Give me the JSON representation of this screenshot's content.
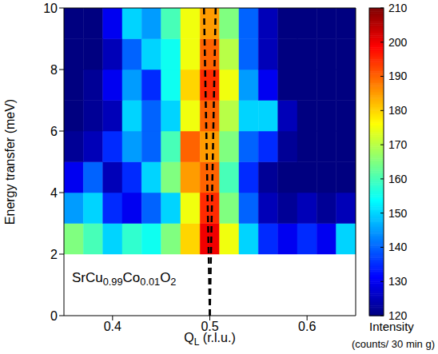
{
  "chart_data": {
    "type": "heatmap",
    "xlabel": "QL (r.l.u.)",
    "ylabel": "Energy transfer (meV)",
    "xlim": [
      0.35,
      0.65
    ],
    "xticks": [
      0.4,
      0.5,
      0.6
    ],
    "ylim": [
      0,
      10
    ],
    "yticks": [
      0,
      2,
      4,
      6,
      8,
      10
    ],
    "x_bins": [
      0.35,
      0.37,
      0.39,
      0.41,
      0.43,
      0.45,
      0.47,
      0.49,
      0.51,
      0.53,
      0.55,
      0.57,
      0.59,
      0.61,
      0.63,
      0.65
    ],
    "y_bins": [
      2,
      3,
      4,
      5,
      6,
      7,
      8,
      9,
      10
    ],
    "cells": [
      [
        165,
        160,
        150,
        158,
        155,
        165,
        180,
        200,
        175,
        150,
        135,
        130,
        135,
        130,
        150
      ],
      [
        145,
        150,
        135,
        130,
        140,
        150,
        175,
        195,
        165,
        140,
        125,
        122,
        125,
        122,
        125
      ],
      [
        130,
        140,
        125,
        135,
        150,
        165,
        185,
        190,
        160,
        135,
        122,
        120,
        120,
        120,
        120
      ],
      [
        122,
        125,
        135,
        145,
        140,
        160,
        190,
        185,
        165,
        140,
        135,
        122,
        120,
        120,
        120
      ],
      [
        120,
        122,
        125,
        150,
        140,
        150,
        175,
        190,
        170,
        150,
        150,
        125,
        120,
        120,
        120
      ],
      [
        120,
        122,
        130,
        145,
        135,
        155,
        180,
        195,
        175,
        145,
        130,
        120,
        120,
        120,
        120
      ],
      [
        120,
        120,
        125,
        140,
        150,
        155,
        175,
        190,
        170,
        140,
        125,
        120,
        120,
        120,
        120
      ],
      [
        120,
        120,
        130,
        150,
        145,
        160,
        175,
        185,
        165,
        140,
        125,
        120,
        120,
        120,
        120
      ]
    ],
    "colorbar": {
      "label": "Intensity",
      "units": "(counts/ 30 min g)",
      "range": [
        120,
        210
      ],
      "ticks": [
        120,
        130,
        140,
        150,
        160,
        170,
        180,
        190,
        200,
        210
      ]
    },
    "annotations": [
      {
        "text": "SrCu0.99Co0.01O2"
      }
    ],
    "lines": [
      {
        "x": [
          0.5,
          0.494
        ],
        "y": [
          0,
          10
        ],
        "color": "#000000",
        "line_style": "dashed"
      },
      {
        "x": [
          0.5,
          0.506
        ],
        "y": [
          0,
          10
        ],
        "color": "#000000",
        "line_style": "dashed"
      }
    ]
  }
}
